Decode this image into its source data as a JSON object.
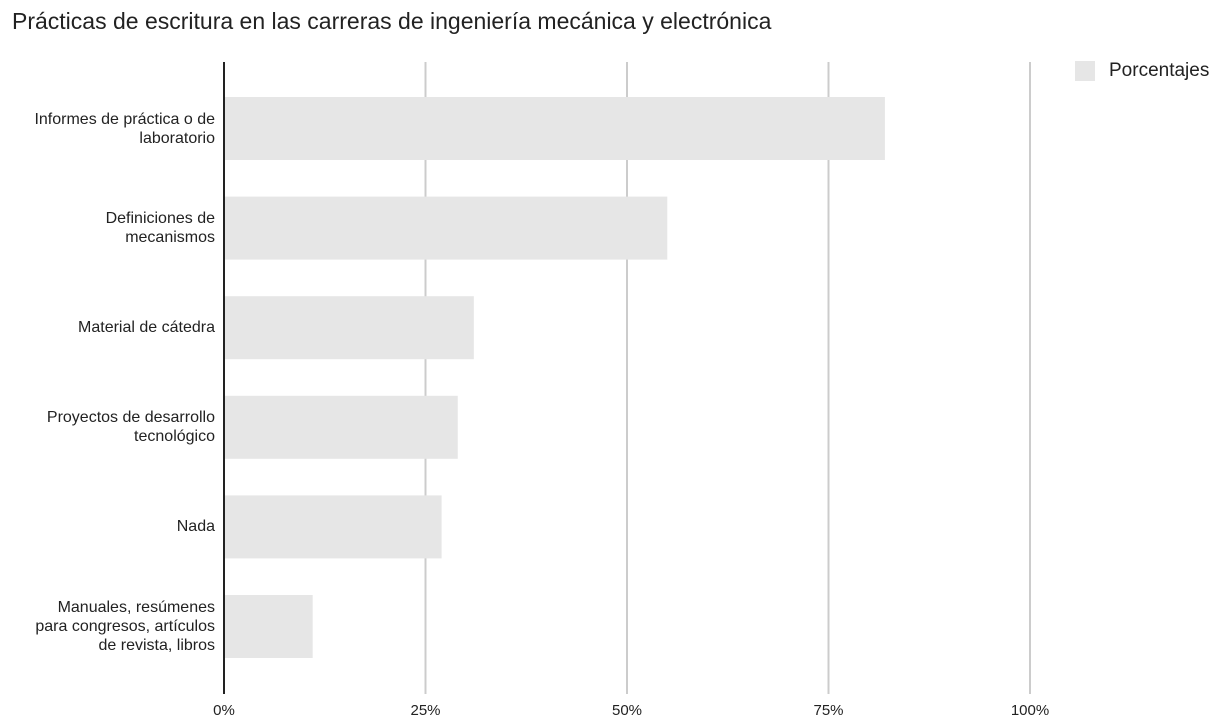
{
  "chart_data": {
    "type": "bar",
    "orientation": "horizontal",
    "title": "Prácticas de escritura en las carreras de ingeniería mecánica y electrónica",
    "categories": [
      "Informes de práctica o de\nlaboratorio",
      "Definiciones de\nmecanismos",
      "Material de cátedra",
      "Proyectos de desarrollo\ntecnológico",
      "Nada",
      "Manuales, resúmenes\npara congresos, artículos\nde revista, libros"
    ],
    "series": [
      {
        "name": "Porcentajes",
        "values": [
          82,
          55,
          31,
          29,
          27,
          11
        ],
        "color": "#e6e6e6"
      }
    ],
    "x_ticks": [
      {
        "value": 0,
        "label": "0%"
      },
      {
        "value": 25,
        "label": "25%"
      },
      {
        "value": 50,
        "label": "50%"
      },
      {
        "value": 75,
        "label": "75%"
      },
      {
        "value": 100,
        "label": "100%"
      }
    ],
    "xlim": [
      0,
      100
    ],
    "grid": true,
    "legend_position": "top-right",
    "gridline_color": "#cccccc",
    "axis_color": "#222222"
  }
}
